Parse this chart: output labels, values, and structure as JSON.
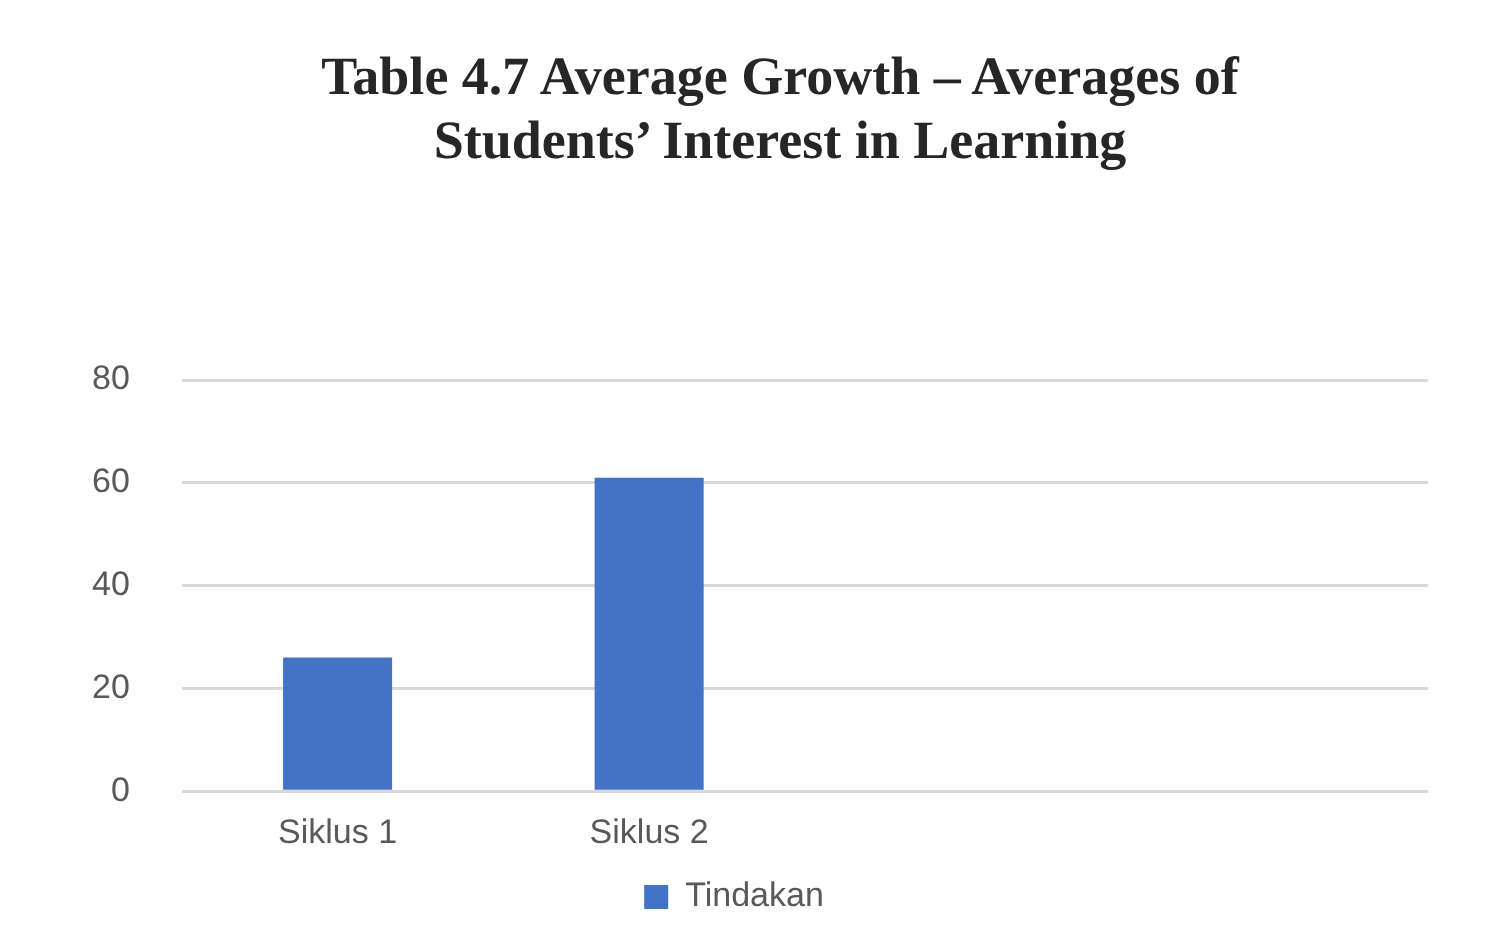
{
  "chart_data": {
    "type": "bar",
    "title": "Table 4.7 Average Growth – Averages of Students’ Interest in Learning",
    "categories": [
      "Siklus 1",
      "Siklus 2",
      null,
      null
    ],
    "series": [
      {
        "name": "Tindakan",
        "color": "#4472c4",
        "values": [
          26,
          61,
          null,
          null
        ]
      }
    ],
    "ylim": [
      0,
      80
    ],
    "yticks": [
      0,
      20,
      40,
      60,
      80
    ],
    "grid": "y",
    "legend": "bottom"
  }
}
